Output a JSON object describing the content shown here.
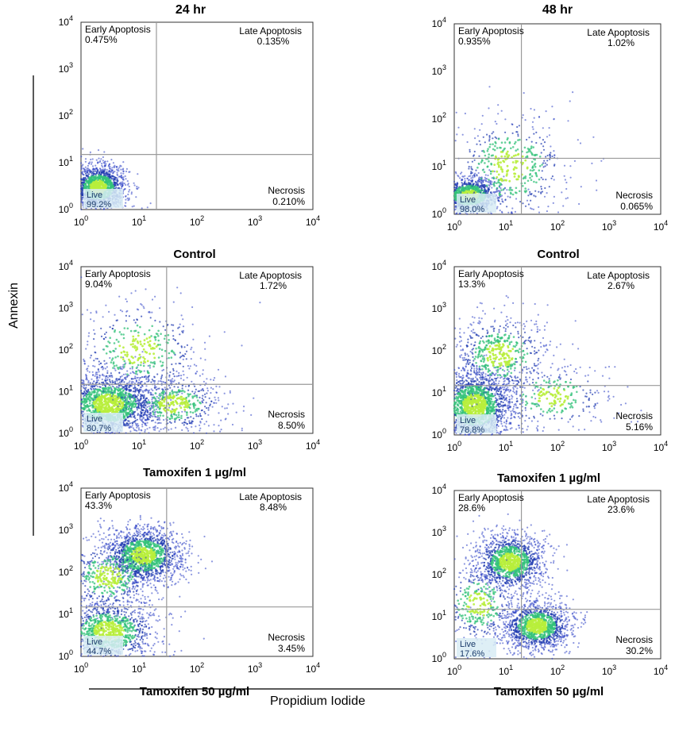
{
  "figure": {
    "column_titles": [
      "24 hr",
      "48 hr"
    ],
    "y_axis_label": "Annexin",
    "x_axis_label": "Propidium Iodide"
  },
  "colors": {
    "dot": "#2c3fc4",
    "dense": "#33c27a",
    "core": "#b8ee3c",
    "gate_line": "#9a9a9a",
    "live_box": "#d8ecf4"
  },
  "chart_data": [
    {
      "type": "scatter",
      "scale": "log",
      "xlim": [
        1,
        10000
      ],
      "ylim": [
        1,
        10000
      ],
      "column": "24 hr",
      "row_label": "Control",
      "gate": {
        "x": 20,
        "y": 15
      },
      "quadrants": {
        "early_apoptosis": "0.475%",
        "late_apoptosis": "0.135%",
        "live": "99.2%",
        "necrosis": "0.210%"
      },
      "quadrant_names": {
        "early_apoptosis": "Early Apoptosis",
        "late_apoptosis": "Late Apoptosis",
        "live": "Live",
        "necrosis": "Necrosis"
      },
      "x_ticks": [
        "10^0",
        "10^1",
        "10^2",
        "10^3",
        "10^4"
      ],
      "y_ticks": [
        "10^0",
        "10^1",
        "10^2",
        "10^3",
        "10^4"
      ],
      "populations": [
        {
          "cx": 2.0,
          "cy": 3.0,
          "spread_x": 0.25,
          "spread_y": 0.25,
          "n": 1500
        }
      ]
    },
    {
      "type": "scatter",
      "scale": "log",
      "xlim": [
        1,
        10000
      ],
      "ylim": [
        1,
        10000
      ],
      "column": "48 hr",
      "row_label": "Control",
      "gate": {
        "x": 20,
        "y": 15
      },
      "quadrants": {
        "early_apoptosis": "0.935%",
        "late_apoptosis": "1.02%",
        "live": "98.0%",
        "necrosis": "0.065%"
      },
      "quadrant_names": {
        "early_apoptosis": "Early Apoptosis",
        "late_apoptosis": "Late Apoptosis",
        "live": "Live",
        "necrosis": "Necrosis"
      },
      "x_ticks": [
        "10^0",
        "10^1",
        "10^2",
        "10^3",
        "10^4"
      ],
      "y_ticks": [
        "10^0",
        "10^1",
        "10^2",
        "10^3",
        "10^4"
      ],
      "populations": [
        {
          "cx": 2.0,
          "cy": 2.5,
          "spread_x": 0.3,
          "spread_y": 0.2,
          "n": 1100
        },
        {
          "cx": 12,
          "cy": 10,
          "spread_x": 0.6,
          "spread_y": 0.6,
          "n": 500
        }
      ]
    },
    {
      "type": "scatter",
      "scale": "log",
      "xlim": [
        1,
        10000
      ],
      "ylim": [
        1,
        10000
      ],
      "column": "24 hr",
      "row_label": "Tamoxifen 1 µg/ml",
      "gate": {
        "x": 30,
        "y": 15
      },
      "quadrants": {
        "early_apoptosis": "9.04%",
        "late_apoptosis": "1.72%",
        "live": "80.7%",
        "necrosis": "8.50%"
      },
      "quadrant_names": {
        "early_apoptosis": "Early Apoptosis",
        "late_apoptosis": "Late Apoptosis",
        "live": "Live",
        "necrosis": "Necrosis"
      },
      "x_ticks": [
        "10^0",
        "10^1",
        "10^2",
        "10^3",
        "10^4"
      ],
      "y_ticks": [
        "10^0",
        "10^1",
        "10^2",
        "10^3",
        "10^4"
      ],
      "populations": [
        {
          "cx": 3.0,
          "cy": 5.0,
          "spread_x": 0.45,
          "spread_y": 0.4,
          "n": 1800
        },
        {
          "cx": 40,
          "cy": 5.0,
          "spread_x": 0.45,
          "spread_y": 0.35,
          "n": 500
        },
        {
          "cx": 10,
          "cy": 100,
          "spread_x": 0.6,
          "spread_y": 0.6,
          "n": 450
        }
      ]
    },
    {
      "type": "scatter",
      "scale": "log",
      "xlim": [
        1,
        10000
      ],
      "ylim": [
        1,
        10000
      ],
      "column": "48 hr",
      "row_label": "Tamoxifen 1 µg/ml",
      "gate": {
        "x": 20,
        "y": 15
      },
      "quadrants": {
        "early_apoptosis": "13.3%",
        "late_apoptosis": "2.67%",
        "live": "78.8%",
        "necrosis": "5.16%"
      },
      "quadrant_names": {
        "early_apoptosis": "Early Apoptosis",
        "late_apoptosis": "Late Apoptosis",
        "live": "Live",
        "necrosis": "Necrosis"
      },
      "x_ticks": [
        "10^0",
        "10^1",
        "10^2",
        "10^3",
        "10^4"
      ],
      "y_ticks": [
        "10^0",
        "10^1",
        "10^2",
        "10^3",
        "10^4"
      ],
      "populations": [
        {
          "cx": 2.5,
          "cy": 5.0,
          "spread_x": 0.4,
          "spread_y": 0.45,
          "n": 1800
        },
        {
          "cx": 8,
          "cy": 80,
          "spread_x": 0.5,
          "spread_y": 0.5,
          "n": 600
        },
        {
          "cx": 80,
          "cy": 8,
          "spread_x": 0.6,
          "spread_y": 0.4,
          "n": 300
        }
      ]
    },
    {
      "type": "scatter",
      "scale": "log",
      "xlim": [
        1,
        10000
      ],
      "ylim": [
        1,
        10000
      ],
      "column": "24 hr",
      "row_label": "Tamoxifen 50 µg/ml",
      "gate": {
        "x": 30,
        "y": 15
      },
      "quadrants": {
        "early_apoptosis": "43.3%",
        "late_apoptosis": "8.48%",
        "live": "44.7%",
        "necrosis": "3.45%"
      },
      "quadrant_names": {
        "early_apoptosis": "Early Apoptosis",
        "late_apoptosis": "Late Apoptosis",
        "live": "Live",
        "necrosis": "Necrosis"
      },
      "x_ticks": [
        "10^0",
        "10^1",
        "10^2",
        "10^3",
        "10^4"
      ],
      "y_ticks": [
        "10^0",
        "10^1",
        "10^2",
        "10^3",
        "10^4"
      ],
      "populations": [
        {
          "cx": 12,
          "cy": 250,
          "spread_x": 0.35,
          "spread_y": 0.35,
          "n": 1500
        },
        {
          "cx": 3.0,
          "cy": 4.0,
          "spread_x": 0.45,
          "spread_y": 0.4,
          "n": 1100
        },
        {
          "cx": 3.0,
          "cy": 80,
          "spread_x": 0.4,
          "spread_y": 0.45,
          "n": 500
        }
      ]
    },
    {
      "type": "scatter",
      "scale": "log",
      "xlim": [
        1,
        10000
      ],
      "ylim": [
        1,
        10000
      ],
      "column": "48 hr",
      "row_label": "Tamoxifen 50 µg/ml",
      "gate": {
        "x": 20,
        "y": 15
      },
      "quadrants": {
        "early_apoptosis": "28.6%",
        "late_apoptosis": "23.6%",
        "live": "17.6%",
        "necrosis": "30.2%"
      },
      "quadrant_names": {
        "early_apoptosis": "Early Apoptosis",
        "late_apoptosis": "Late Apoptosis",
        "live": "Live",
        "necrosis": "Necrosis"
      },
      "x_ticks": [
        "10^0",
        "10^1",
        "10^2",
        "10^3",
        "10^4"
      ],
      "y_ticks": [
        "10^0",
        "10^1",
        "10^2",
        "10^3",
        "10^4"
      ],
      "populations": [
        {
          "cx": 12,
          "cy": 200,
          "spread_x": 0.35,
          "spread_y": 0.35,
          "n": 1300
        },
        {
          "cx": 40,
          "cy": 6,
          "spread_x": 0.35,
          "spread_y": 0.3,
          "n": 1300
        },
        {
          "cx": 3.0,
          "cy": 20,
          "spread_x": 0.4,
          "spread_y": 0.5,
          "n": 400
        }
      ]
    }
  ]
}
